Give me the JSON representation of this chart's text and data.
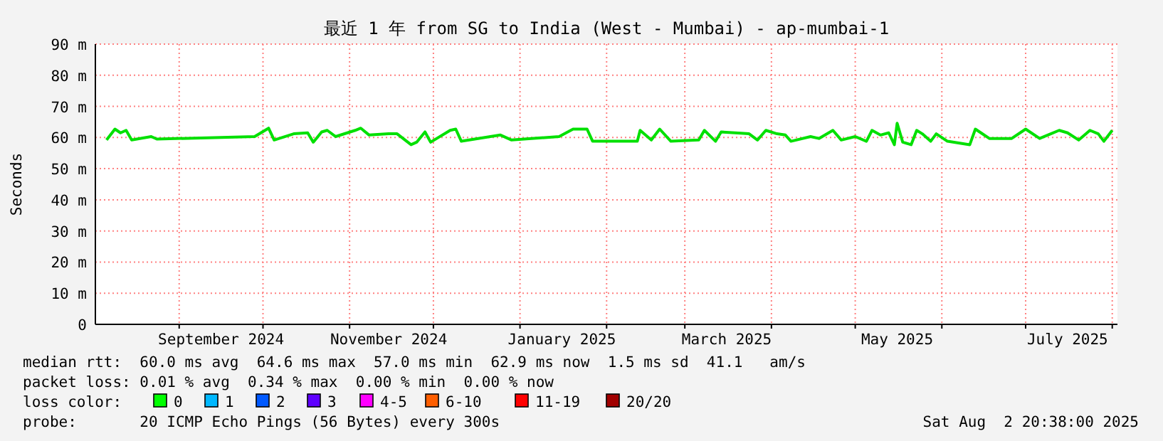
{
  "chart_data": {
    "type": "line",
    "title": "最近 1 年 from SG to India (West - Mumbai) - ap-mumbai-1",
    "ylabel": "Seconds",
    "color": "#00e000",
    "grid": true,
    "xlim": [
      "2024-08-02",
      "2025-08-02T20:38"
    ],
    "xticks": [
      {
        "value": "2024-09-01",
        "label": null
      },
      {
        "value": "2024-09-16",
        "label": "September 2024"
      },
      {
        "value": "2024-10-01",
        "label": null
      },
      {
        "value": "2024-11-01",
        "label": null
      },
      {
        "value": "2024-11-15",
        "label": "November 2024"
      },
      {
        "value": "2024-12-01",
        "label": null
      },
      {
        "value": "2025-01-01",
        "label": null
      },
      {
        "value": "2025-01-16",
        "label": "January 2025"
      },
      {
        "value": "2025-02-01",
        "label": null
      },
      {
        "value": "2025-03-01",
        "label": null
      },
      {
        "value": "2025-03-16",
        "label": "March 2025"
      },
      {
        "value": "2025-04-01",
        "label": null
      },
      {
        "value": "2025-05-01",
        "label": null
      },
      {
        "value": "2025-05-16",
        "label": "May 2025"
      },
      {
        "value": "2025-06-01",
        "label": null
      },
      {
        "value": "2025-07-01",
        "label": null
      },
      {
        "value": "2025-07-16",
        "label": "July 2025"
      },
      {
        "value": "2025-08-01",
        "label": null
      }
    ],
    "ylim": [
      0,
      90
    ],
    "yticks": [
      {
        "value": 0,
        "label": "0"
      },
      {
        "value": 10,
        "label": "10 m"
      },
      {
        "value": 20,
        "label": "20 m"
      },
      {
        "value": 30,
        "label": "30 m"
      },
      {
        "value": 40,
        "label": "40 m"
      },
      {
        "value": 50,
        "label": "50 m"
      },
      {
        "value": 60,
        "label": "60 m"
      },
      {
        "value": 70,
        "label": "70 m"
      },
      {
        "value": 80,
        "label": "80 m"
      },
      {
        "value": 90,
        "label": "90 m"
      }
    ],
    "x": [
      "2024-08-06",
      "2024-08-09",
      "2024-08-11",
      "2024-08-13",
      "2024-08-15",
      "2024-08-22",
      "2024-08-24",
      "2024-09-28",
      "2024-10-03",
      "2024-10-05",
      "2024-10-12",
      "2024-10-17",
      "2024-10-19",
      "2024-10-22",
      "2024-10-24",
      "2024-10-27",
      "2024-11-03",
      "2024-11-05",
      "2024-11-08",
      "2024-11-15",
      "2024-11-18",
      "2024-11-23",
      "2024-11-25",
      "2024-11-28",
      "2024-11-30",
      "2024-12-07",
      "2024-12-09",
      "2024-12-11",
      "2024-12-25",
      "2024-12-29",
      "2025-01-15",
      "2025-01-20",
      "2025-01-25",
      "2025-01-27",
      "2025-02-12",
      "2025-02-13",
      "2025-02-17",
      "2025-02-20",
      "2025-02-24",
      "2025-03-06",
      "2025-03-08",
      "2025-03-12",
      "2025-03-14",
      "2025-03-19",
      "2025-03-24",
      "2025-03-27",
      "2025-03-30",
      "2025-04-03",
      "2025-04-06",
      "2025-04-08",
      "2025-04-15",
      "2025-04-18",
      "2025-04-23",
      "2025-04-26",
      "2025-05-01",
      "2025-05-05",
      "2025-05-07",
      "2025-05-10",
      "2025-05-13",
      "2025-05-15",
      "2025-05-16",
      "2025-05-18",
      "2025-05-21",
      "2025-05-23",
      "2025-05-25",
      "2025-05-28",
      "2025-05-30",
      "2025-06-03",
      "2025-06-11",
      "2025-06-13",
      "2025-06-15",
      "2025-06-18",
      "2025-06-26",
      "2025-07-01",
      "2025-07-06",
      "2025-07-10",
      "2025-07-13",
      "2025-07-16",
      "2025-07-20",
      "2025-07-24",
      "2025-07-27",
      "2025-07-29",
      "2025-08-01"
    ],
    "values": [
      59.2,
      62.7,
      61.5,
      62.3,
      59.2,
      60.3,
      59.5,
      60.3,
      63.0,
      59.2,
      61.2,
      61.5,
      58.5,
      61.8,
      62.3,
      60.3,
      62.3,
      63.0,
      60.8,
      61.2,
      61.2,
      57.7,
      58.5,
      61.8,
      58.5,
      62.3,
      62.7,
      58.8,
      60.8,
      59.2,
      60.3,
      62.7,
      62.7,
      58.8,
      58.8,
      62.3,
      59.2,
      62.7,
      58.8,
      59.2,
      62.3,
      58.8,
      61.8,
      61.5,
      61.2,
      59.2,
      62.3,
      61.2,
      60.8,
      58.8,
      60.3,
      59.7,
      62.3,
      59.2,
      60.3,
      58.8,
      62.3,
      60.8,
      61.5,
      57.7,
      64.6,
      58.5,
      57.7,
      62.3,
      61.2,
      58.8,
      61.2,
      58.8,
      57.7,
      62.7,
      61.5,
      59.7,
      59.7,
      62.7,
      59.7,
      61.2,
      62.3,
      61.5,
      59.2,
      62.3,
      61.2,
      58.8,
      62.3
    ],
    "annotations": [
      "median rtt:  60.0 ms avg  64.6 ms max  57.0 ms min  62.9 ms now  1.5 ms sd  41.1   am/s",
      "packet loss: 0.01 % avg  0.34 % max  0.00 % min  0.00 % now",
      "loss color:",
      "0",
      "1",
      "2",
      "3",
      "4-5",
      "6-10",
      "11-19",
      "20/20",
      "probe:       20 ICMP Echo Pings (56 Bytes) every 300s",
      "Sat Aug  2 20:38:00 2025"
    ]
  }
}
